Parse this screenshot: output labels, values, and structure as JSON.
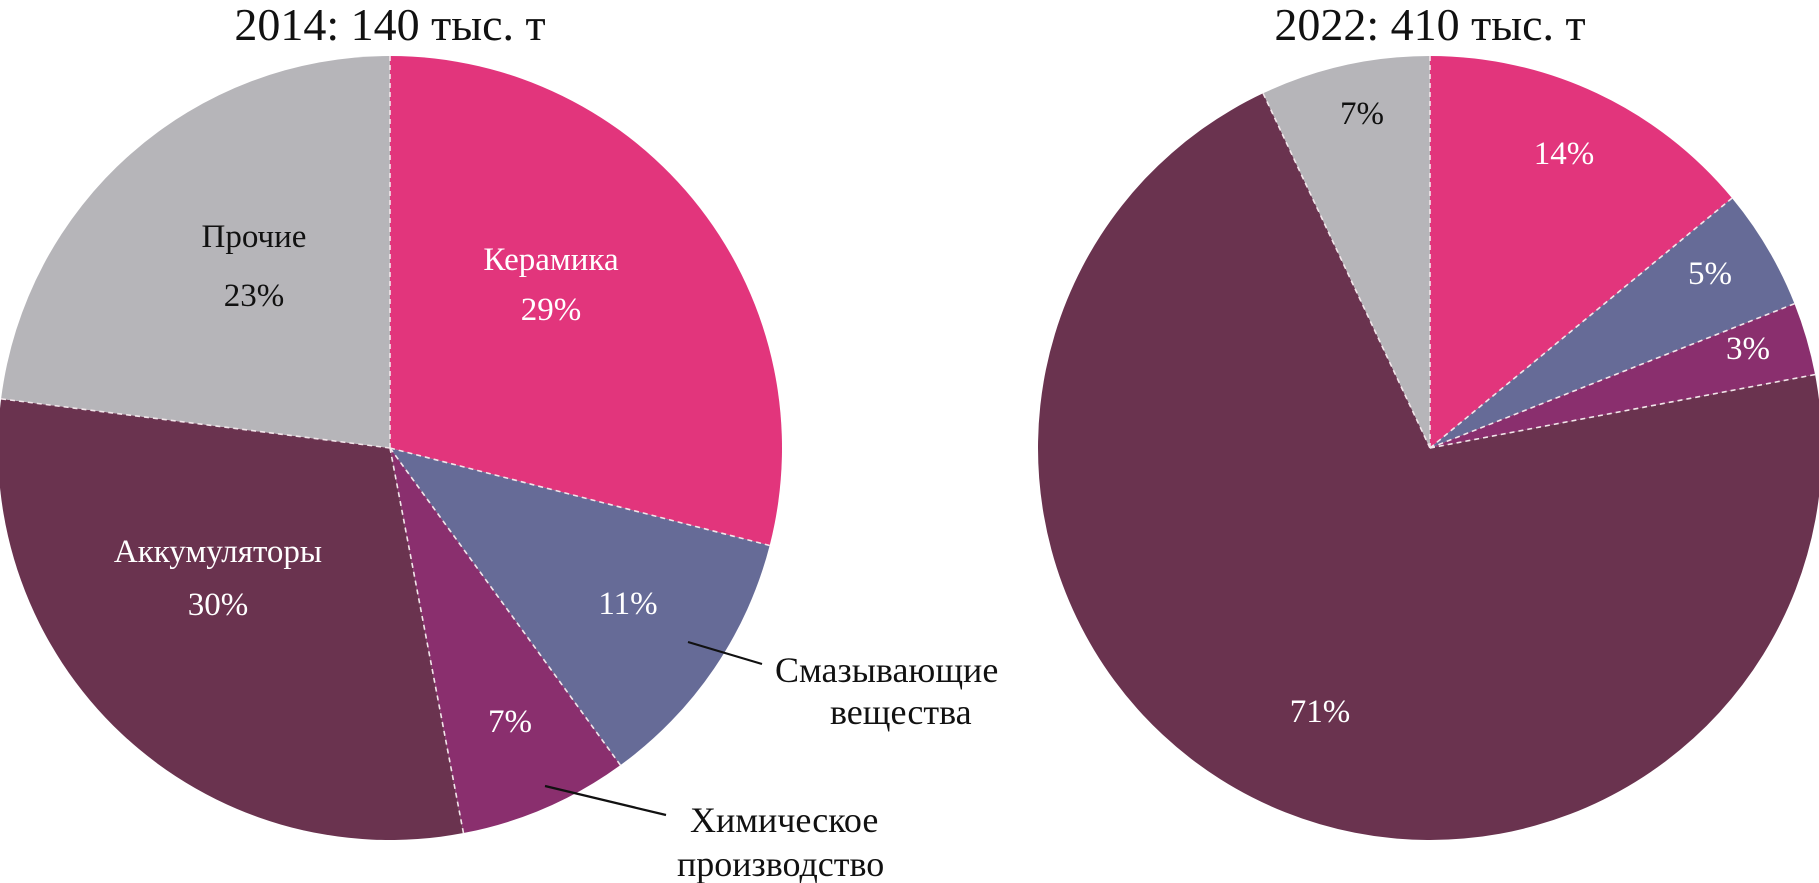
{
  "chart_data": [
    {
      "type": "pie",
      "title": "2014: 140 тыс. т",
      "slices": [
        {
          "name": "Керамика",
          "value_label": "29%",
          "value": 29,
          "color": "#e2357c"
        },
        {
          "name": "Смазывающие вещества",
          "value_label": "11%",
          "value": 11,
          "color": "#666b97"
        },
        {
          "name": "Химическое производство",
          "value_label": "7%",
          "value": 7,
          "color": "#8a2f6e"
        },
        {
          "name": "Аккумуляторы",
          "value_label": "30%",
          "value": 30,
          "color": "#6a334f"
        },
        {
          "name": "Прочие",
          "value_label": "23%",
          "value": 23,
          "color": "#b6b5b9"
        }
      ]
    },
    {
      "type": "pie",
      "title": "2022: 410 тыс. т",
      "slices": [
        {
          "value_label": "14%",
          "value": 14,
          "color": "#e2357c"
        },
        {
          "value_label": "5%",
          "value": 5,
          "color": "#666b97"
        },
        {
          "value_label": "3%",
          "value": 3,
          "color": "#8a2f6e"
        },
        {
          "value_label": "71%",
          "value": 71,
          "color": "#6a334f"
        },
        {
          "value_label": "7%",
          "value": 7,
          "color": "#b6b5b9"
        }
      ]
    }
  ],
  "callouts": {
    "lubricants_line1": "Смазывающие",
    "lubricants_line2": "вещества",
    "chemical_line1": "Химическое",
    "chemical_line2": "производство"
  }
}
